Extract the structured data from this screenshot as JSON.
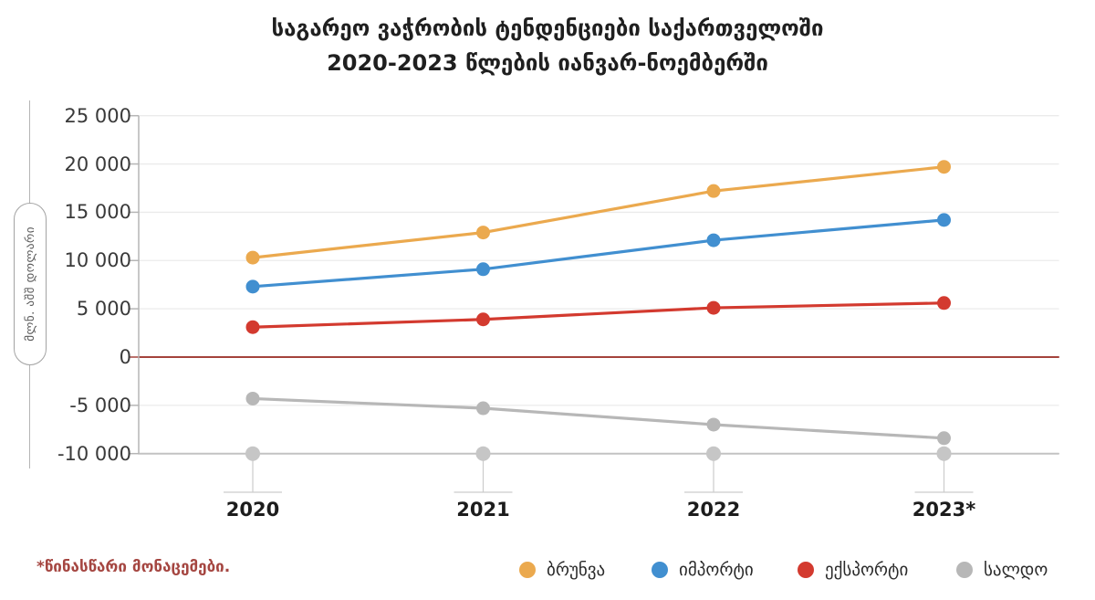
{
  "title": {
    "line1": "საგარეო  ვაჭრობის ტენდენციები საქართველოში",
    "line2": "2020-2023 წლების იანვარ-ნოემბერში"
  },
  "footnote": "*წინასწარი მონაცემები.",
  "chart_data": {
    "type": "line",
    "title": "საგარეო ვაჭრობის ტენდენციები საქართველოში 2020-2023 წლების იანვარ-ნოემბერში",
    "ylabel": "მლნ. აშშ დოლარი",
    "categories": [
      "2020",
      "2021",
      "2022",
      "2023*"
    ],
    "series": [
      {
        "key": "turnover",
        "name": "ბრუნვა",
        "color": "#EBA94E",
        "values": [
          10300,
          12900,
          17200,
          19700
        ]
      },
      {
        "key": "import",
        "name": "იმპორტი",
        "color": "#418FD0",
        "values": [
          7300,
          9100,
          12100,
          14200
        ]
      },
      {
        "key": "export",
        "name": "ექსპორტი",
        "color": "#D33A2F",
        "values": [
          3100,
          3900,
          5100,
          5600
        ]
      },
      {
        "key": "balance",
        "name": "სალდო",
        "color": "#B7B7B7",
        "values": [
          -4300,
          -5300,
          -7000,
          -8400
        ]
      }
    ],
    "ylim": [
      -10000,
      25000
    ],
    "y_ticks": [
      25000,
      20000,
      15000,
      10000,
      5000,
      0,
      -5000,
      -10000
    ],
    "y_tick_labels": [
      "25 000",
      "20 000",
      "15 000",
      "10 000",
      "5 000",
      "0",
      "-5 000",
      "-10 000"
    ],
    "grid": "horizontal",
    "legend_position": "bottom",
    "colors": {
      "zero_line": "#A4433C",
      "baseline": "#C3C3C3",
      "grid": "#EBEBEB",
      "axis": "#B5B5B5",
      "marker": "#C6C6C6",
      "tick_text": "#3A3A3A"
    }
  }
}
